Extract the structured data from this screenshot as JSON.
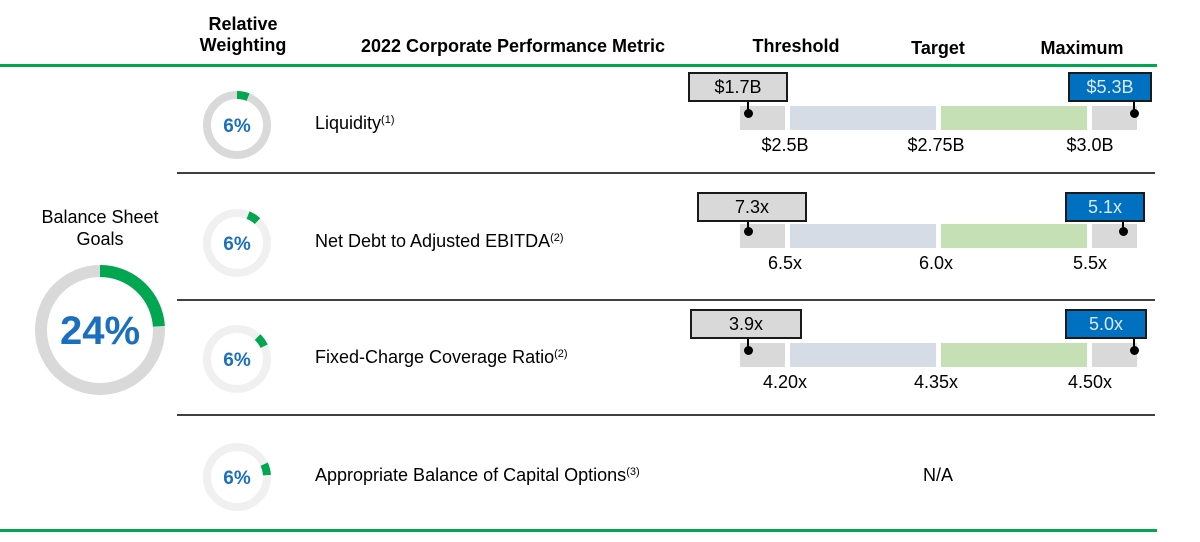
{
  "header": {
    "weighting": "Relative Weighting",
    "metric": "2022 Corporate Performance Metric",
    "threshold": "Threshold",
    "target": "Target",
    "maximum": "Maximum"
  },
  "group": {
    "label": "Balance Sheet Goals",
    "weight": "24%",
    "weight_pct": 24
  },
  "colors": {
    "green": "#00a650",
    "blue": "#0070c0",
    "gray": "#d9d9d9",
    "bluegray": "#d6dce5",
    "lightgreen": "#c5e0b4"
  },
  "rows": [
    {
      "weight": "6%",
      "weight_pct": 6,
      "metric": "Liquidity",
      "note": "(1)",
      "threshold": "$2.5B",
      "target": "$2.75B",
      "maximum": "$3.0B",
      "low_callout": "$1.7B",
      "high_callout": "$5.3B"
    },
    {
      "weight": "6%",
      "weight_pct": 6,
      "metric": "Net Debt to Adjusted EBITDA",
      "note": "(2)",
      "threshold": "6.5x",
      "target": "6.0x",
      "maximum": "5.5x",
      "low_callout": "7.3x",
      "high_callout": "5.1x"
    },
    {
      "weight": "6%",
      "weight_pct": 6,
      "metric": "Fixed-Charge Coverage Ratio",
      "note": "(2)",
      "threshold": "4.20x",
      "target": "4.35x",
      "maximum": "4.50x",
      "low_callout": "3.9x",
      "high_callout": "5.0x"
    },
    {
      "weight": "6%",
      "weight_pct": 6,
      "metric": "Appropriate Balance of Capital Options",
      "note": "(3)",
      "na": "N/A"
    }
  ]
}
